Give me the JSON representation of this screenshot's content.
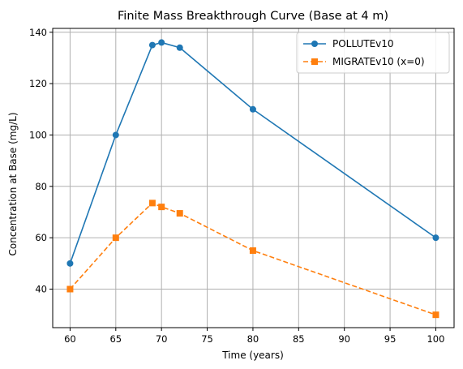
{
  "chart_data": {
    "type": "line",
    "title": "Finite Mass Breakthrough Curve (Base at 4 m)",
    "xlabel": "Time (years)",
    "ylabel": "Concentration at Base (mg/L)",
    "xlim": [
      58.1,
      102.0
    ],
    "ylim": [
      25.0,
      141.5
    ],
    "xticks": [
      60,
      65,
      70,
      75,
      80,
      85,
      90,
      95,
      100
    ],
    "yticks": [
      40,
      60,
      80,
      100,
      120,
      140
    ],
    "grid": true,
    "legend_position": "top-right",
    "series": [
      {
        "name": "POLLUTEv10",
        "color": "#1f77b4",
        "linestyle": "solid",
        "marker": "circle",
        "x": [
          60,
          65,
          69,
          70,
          72,
          80,
          100
        ],
        "y": [
          50,
          100,
          135,
          136,
          134,
          110,
          60
        ]
      },
      {
        "name": "MIGRATEv10 (x=0)",
        "color": "#ff7f0e",
        "linestyle": "dashed",
        "marker": "square",
        "x": [
          60,
          65,
          69,
          70,
          72,
          80,
          100
        ],
        "y": [
          40,
          60,
          73.5,
          72,
          69.5,
          55,
          30
        ]
      }
    ]
  }
}
